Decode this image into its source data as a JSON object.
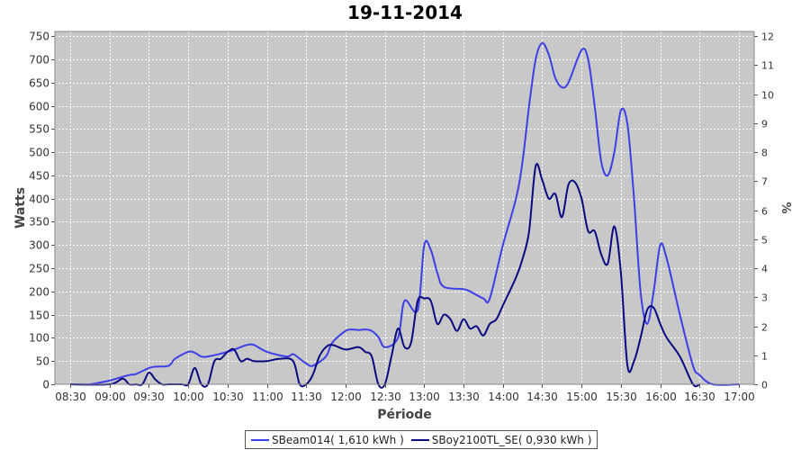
{
  "chart_data": {
    "type": "line",
    "title": "19-11-2014",
    "xlabel": "Période",
    "ylabel": "Watts",
    "y2label": "%",
    "xlim": [
      "08:30",
      "17:00"
    ],
    "ylim": [
      0,
      760
    ],
    "y2lim": [
      0,
      12.16
    ],
    "x_ticks": [
      "08:30",
      "09:00",
      "09:30",
      "10:00",
      "10:30",
      "11:00",
      "11:30",
      "12:00",
      "12:30",
      "13:00",
      "13:30",
      "14:00",
      "14:30",
      "15:00",
      "15:30",
      "16:00",
      "16:30",
      "17:00"
    ],
    "y_ticks": [
      0,
      50,
      100,
      150,
      200,
      250,
      300,
      350,
      400,
      450,
      500,
      550,
      600,
      650,
      700,
      750
    ],
    "y2_ticks": [
      0,
      1,
      2,
      3,
      4,
      5,
      6,
      7,
      8,
      9,
      10,
      11,
      12
    ],
    "grid": true,
    "legend_position": "bottom-center",
    "series": [
      {
        "name": "SBeam014( 1,610 kWh )",
        "color": "#3e3ee6",
        "x": [
          "08:30",
          "08:45",
          "09:00",
          "09:05",
          "09:15",
          "09:20",
          "09:30",
          "09:35",
          "09:45",
          "09:50",
          "10:00",
          "10:05",
          "10:10",
          "10:15",
          "10:30",
          "10:40",
          "10:45",
          "10:50",
          "11:00",
          "11:15",
          "11:20",
          "11:25",
          "11:30",
          "11:35",
          "11:45",
          "11:50",
          "12:00",
          "12:05",
          "12:10",
          "12:15",
          "12:20",
          "12:25",
          "12:30",
          "12:40",
          "12:45",
          "12:55",
          "13:00",
          "13:05",
          "13:10",
          "13:15",
          "13:30",
          "13:35",
          "13:45",
          "13:50",
          "14:00",
          "14:10",
          "14:15",
          "14:20",
          "14:25",
          "14:30",
          "14:35",
          "14:40",
          "14:45",
          "14:50",
          "15:00",
          "15:05",
          "15:10",
          "15:15",
          "15:20",
          "15:25",
          "15:30",
          "15:35",
          "15:40",
          "15:45",
          "15:50",
          "15:55",
          "16:00",
          "16:05",
          "16:15",
          "16:25",
          "16:30",
          "16:40",
          "17:00"
        ],
        "values": [
          0,
          0,
          8,
          12,
          20,
          22,
          35,
          38,
          40,
          55,
          70,
          68,
          60,
          60,
          70,
          80,
          85,
          85,
          70,
          60,
          65,
          55,
          45,
          40,
          60,
          90,
          115,
          118,
          117,
          118,
          115,
          102,
          80,
          100,
          180,
          160,
          300,
          290,
          240,
          210,
          205,
          200,
          185,
          185,
          300,
          400,
          480,
          600,
          700,
          735,
          710,
          660,
          640,
          650,
          720,
          700,
          600,
          480,
          450,
          500,
          590,
          560,
          400,
          200,
          130,
          200,
          300,
          270,
          150,
          40,
          20,
          0,
          0
        ]
      },
      {
        "name": "SBoy2100TL_SE( 0,930 kWh )",
        "color": "#0a0a80",
        "x": [
          "08:30",
          "09:00",
          "09:10",
          "09:15",
          "09:20",
          "09:25",
          "09:30",
          "09:35",
          "09:40",
          "09:45",
          "09:55",
          "10:00",
          "10:05",
          "10:10",
          "10:15",
          "10:20",
          "10:25",
          "10:30",
          "10:35",
          "10:40",
          "10:45",
          "10:50",
          "11:00",
          "11:10",
          "11:20",
          "11:25",
          "11:30",
          "11:35",
          "11:40",
          "11:45",
          "11:50",
          "12:00",
          "12:10",
          "12:15",
          "12:20",
          "12:25",
          "12:30",
          "12:35",
          "12:40",
          "12:45",
          "12:50",
          "12:55",
          "13:00",
          "13:05",
          "13:10",
          "13:15",
          "13:20",
          "13:25",
          "13:30",
          "13:35",
          "13:40",
          "13:45",
          "13:50",
          "13:55",
          "14:00",
          "14:10",
          "14:15",
          "14:20",
          "14:25",
          "14:30",
          "14:35",
          "14:40",
          "14:45",
          "14:50",
          "14:55",
          "15:00",
          "15:05",
          "15:10",
          "15:15",
          "15:20",
          "15:25",
          "15:30",
          "15:35",
          "15:40",
          "15:45",
          "15:50",
          "15:55",
          "16:00",
          "16:05",
          "16:15",
          "16:25",
          "16:30"
        ],
        "values": [
          0,
          0,
          12,
          0,
          0,
          0,
          25,
          10,
          0,
          0,
          0,
          0,
          35,
          0,
          0,
          50,
          55,
          70,
          75,
          50,
          55,
          50,
          50,
          55,
          50,
          0,
          0,
          20,
          60,
          80,
          85,
          75,
          80,
          70,
          60,
          0,
          0,
          60,
          120,
          80,
          90,
          180,
          185,
          180,
          130,
          150,
          140,
          115,
          140,
          120,
          125,
          105,
          130,
          140,
          170,
          230,
          270,
          330,
          470,
          440,
          400,
          410,
          360,
          430,
          435,
          400,
          330,
          330,
          280,
          260,
          340,
          240,
          40,
          50,
          100,
          160,
          165,
          130,
          100,
          60,
          0,
          0
        ]
      }
    ]
  }
}
